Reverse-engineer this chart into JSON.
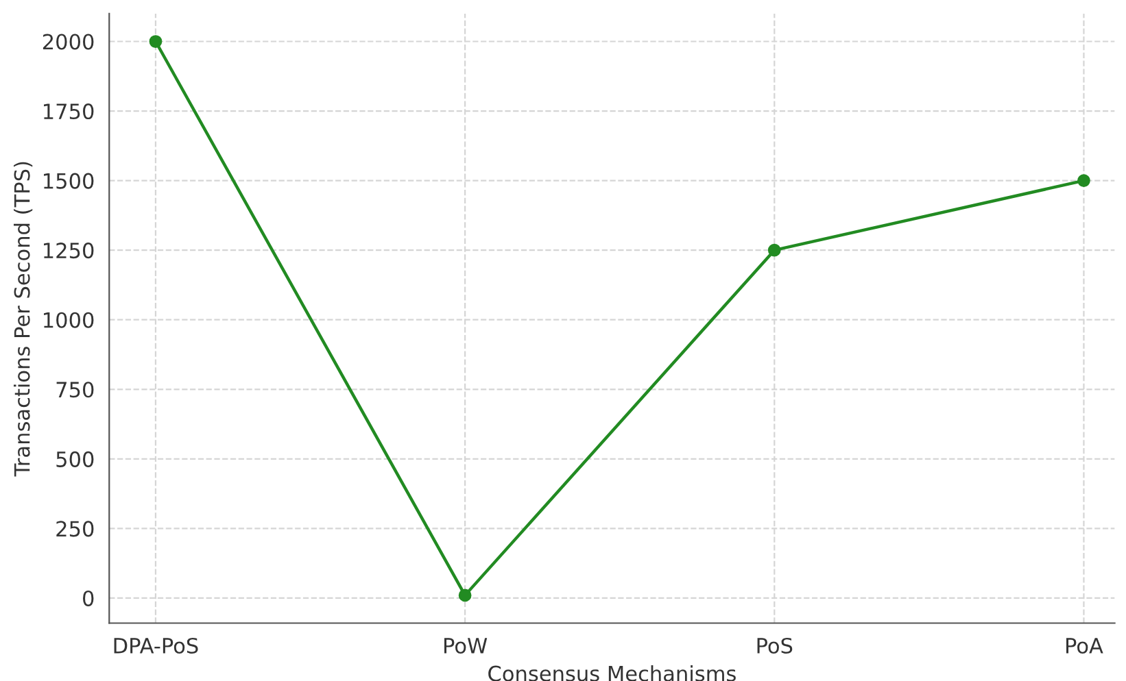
{
  "chart_data": {
    "type": "line",
    "xlabel": "Consensus Mechanisms",
    "ylabel": "Transactions Per Second (TPS)",
    "categories": [
      "DPA-PoS",
      "PoW",
      "PoS",
      "PoA"
    ],
    "series": [
      {
        "color": "#228b22",
        "values": [
          2000,
          10,
          1250,
          1500
        ]
      }
    ],
    "ylim": [
      -90,
      2100
    ],
    "yticks": [
      0,
      250,
      500,
      750,
      1000,
      1250,
      1500,
      1750,
      2000
    ],
    "grid": true,
    "marker": "circle",
    "line_style": "solid",
    "legend": false
  }
}
